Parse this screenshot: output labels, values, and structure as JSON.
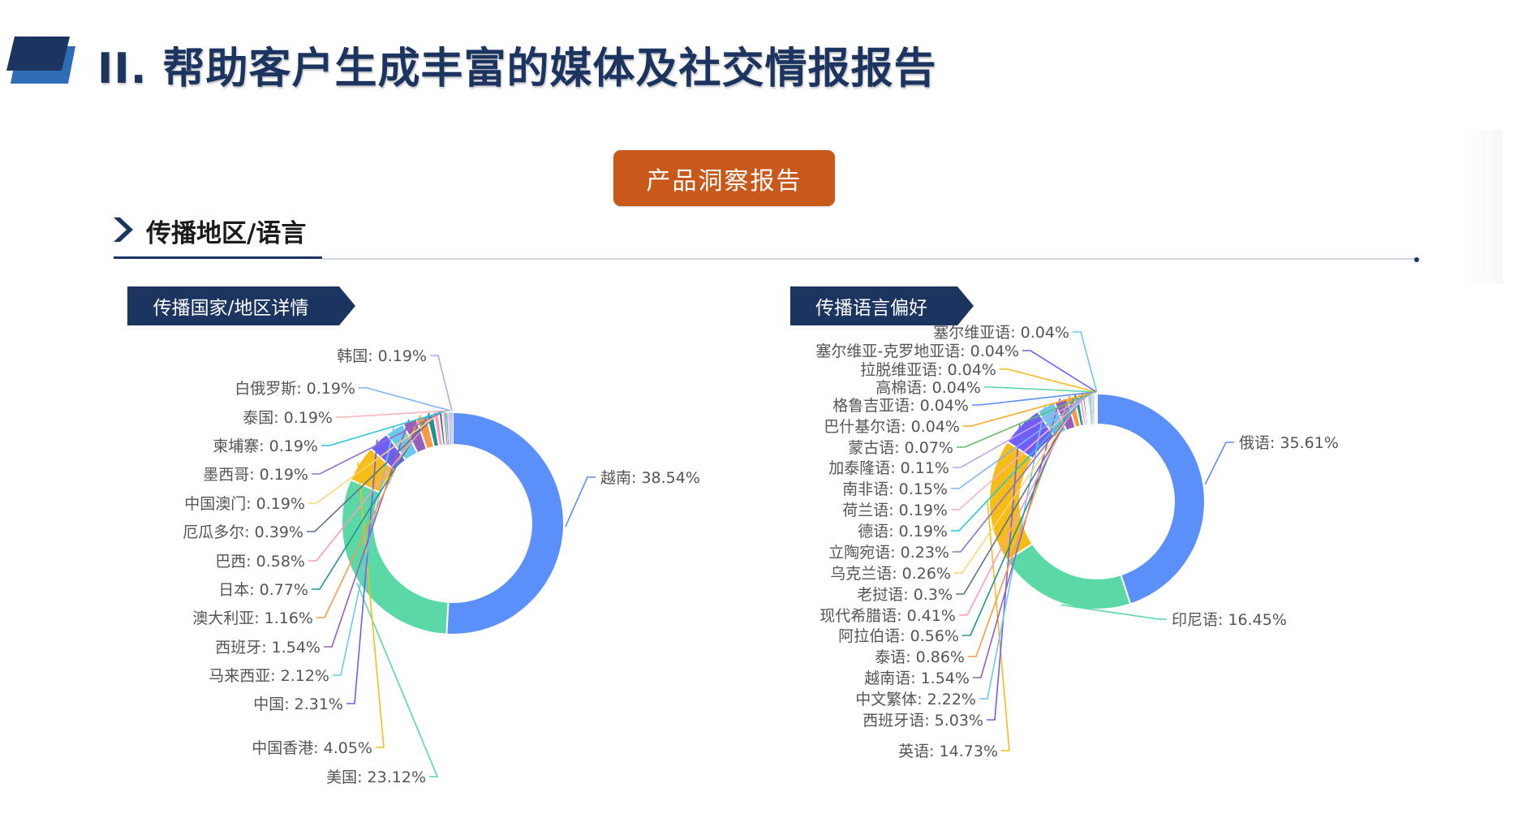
{
  "header": {
    "title": "II. 帮助客户生成丰富的媒体及社交情报报告"
  },
  "report_button": {
    "label": "产品洞察报告"
  },
  "section": {
    "title": "传播地区/语言"
  },
  "colors": {
    "brand_navy": "#1c3560",
    "brand_blue": "#2e6db5",
    "accent_orange": "#c8591a",
    "palette": [
      "#5b8ff9",
      "#5ad8a6",
      "#f6bd16",
      "#6f5ef9",
      "#6dc8ec",
      "#945fb9",
      "#ff9845",
      "#1e9493",
      "#ff99c3",
      "#5d7092",
      "#ffd37a",
      "#9270ca",
      "#26c6da",
      "#ffb3ba",
      "#7fb3f5",
      "#c5a3e8",
      "#66bb6a",
      "#ffa726"
    ]
  },
  "chart_data": [
    {
      "type": "pie",
      "variant": "donut",
      "title": "传播国家/地区详情",
      "labels": [
        "越南",
        "美国",
        "中国香港",
        "中国",
        "马来西亚",
        "西班牙",
        "澳大利亚",
        "日本",
        "巴西",
        "厄瓜多尔",
        "中国澳门",
        "墨西哥",
        "柬埔寨",
        "泰国",
        "白俄罗斯",
        "韩国"
      ],
      "values": [
        38.54,
        23.12,
        4.05,
        2.31,
        2.12,
        1.54,
        1.16,
        0.77,
        0.58,
        0.39,
        0.19,
        0.19,
        0.19,
        0.19,
        0.19,
        0.19
      ],
      "value_suffix": "%",
      "start_angle_deg": 0,
      "direction": "clockwise"
    },
    {
      "type": "pie",
      "variant": "donut",
      "title": "传播语言偏好",
      "labels": [
        "俄语",
        "印尼语",
        "英语",
        "西班牙语",
        "中文繁体",
        "越南语",
        "泰语",
        "阿拉伯语",
        "现代希腊语",
        "老挝语",
        "乌克兰语",
        "立陶宛语",
        "德语",
        "荷兰语",
        "南非语",
        "加泰隆语",
        "蒙古语",
        "巴什基尔语",
        "格鲁吉亚语",
        "高棉语",
        "拉脱维亚语",
        "塞尔维亚-克罗地亚语",
        "塞尔维亚语"
      ],
      "values": [
        35.61,
        16.45,
        14.73,
        5.03,
        2.22,
        1.54,
        0.86,
        0.56,
        0.41,
        0.3,
        0.26,
        0.23,
        0.19,
        0.19,
        0.15,
        0.11,
        0.07,
        0.04,
        0.04,
        0.04,
        0.04,
        0.04,
        0.04
      ],
      "value_suffix": "%",
      "start_angle_deg": 0,
      "direction": "clockwise"
    }
  ]
}
